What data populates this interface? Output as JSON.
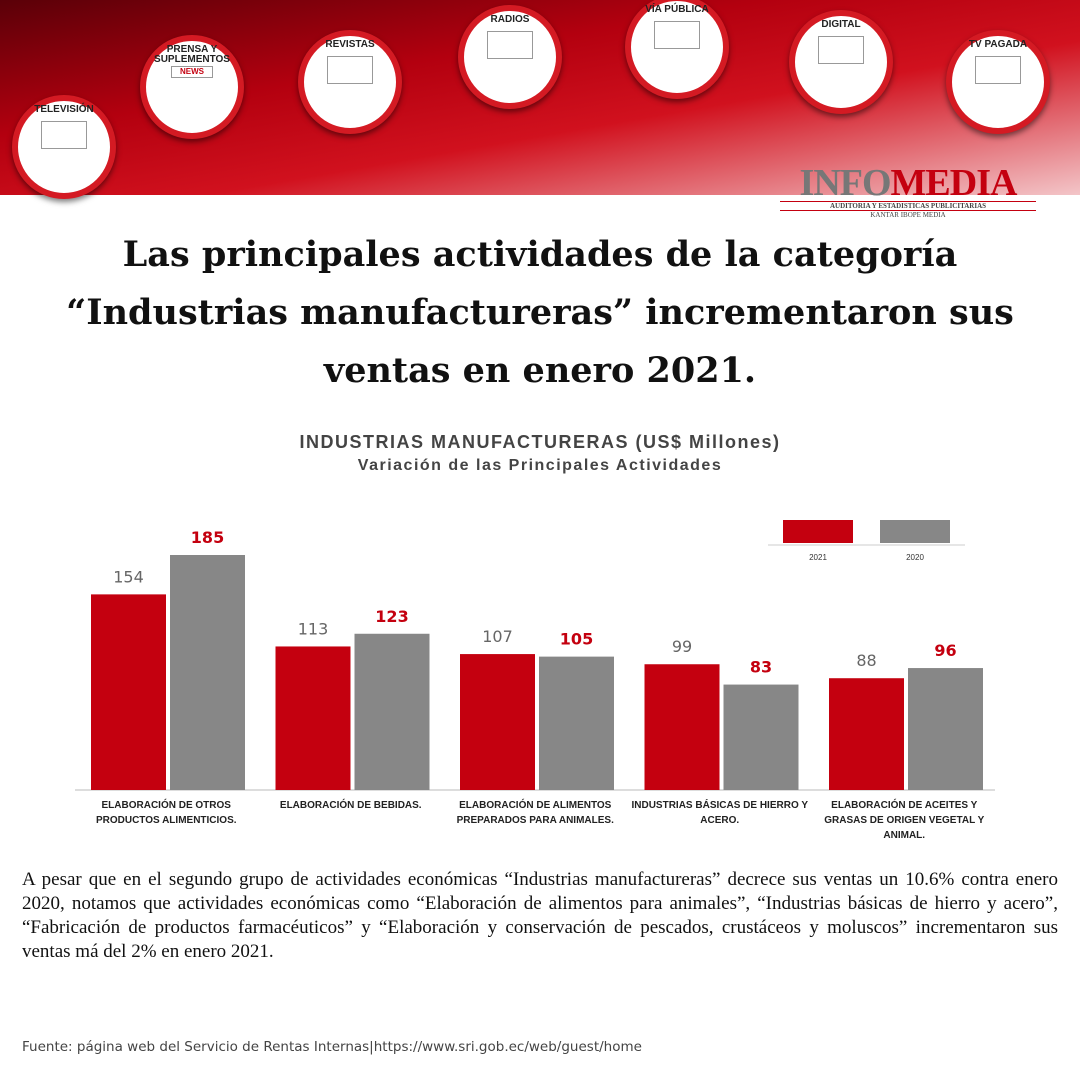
{
  "header": {
    "media": [
      "TELEVISIÓN",
      "PRENSA Y SUPLEMENTOS",
      "REVISTAS",
      "RADIOS",
      "VÍA PÚBLICA",
      "DIGITAL",
      "TV PAGADA"
    ],
    "news_icon": "NEWS",
    "logo": {
      "name_a": "INFO",
      "name_b": "MEDIA",
      "tagline": "AUDITORIA Y ESTADISTICAS PUBLICITARIAS",
      "partner": "KANTAR IBOPE MEDIA"
    }
  },
  "headline": "Las principales actividades de la categoría “Industrias manufactureras” incrementaron sus ventas en enero 2021.",
  "chart_data": {
    "type": "bar",
    "title": "INDUSTRIAS MANUFACTURERAS (US$ Millones)",
    "subtitle": "Variación de las Principales Actividades",
    "categories": [
      "ELABORACIÓN DE OTROS PRODUCTOS ALIMENTICIOS.",
      "ELABORACIÓN DE BEBIDAS.",
      "ELABORACIÓN DE ALIMENTOS PREPARADOS PARA ANIMALES.",
      "INDUSTRIAS BÁSICAS DE HIERRO Y ACERO.",
      "ELABORACIÓN DE ACEITES Y GRASAS DE ORIGEN VEGETAL Y ANIMAL."
    ],
    "series": [
      {
        "name": "2021",
        "color": "#c4000f",
        "label_color": "#666666",
        "values": [
          154,
          113,
          107,
          99,
          88
        ]
      },
      {
        "name": "2020",
        "color": "#878787",
        "label_color": "#c4000f",
        "values": [
          185,
          123,
          105,
          83,
          96
        ]
      }
    ],
    "legend": "top-right"
  },
  "body": "A pesar que en el segundo grupo de actividades económicas “Industrias manufactureras” decrece sus ventas un 10.6% contra enero 2020, notamos que actividades económicas como “Elaboración de alimentos para animales”, “Industrias básicas de hierro y acero”, “Fabricación de productos farmacéuticos” y “Elaboración y conservación de pescados, crustáceos y moluscos” incrementaron sus ventas má del 2% en enero 2021.",
  "source": "Fuente: página web del Servicio de Rentas Internas|https://www.sri.gob.ec/web/guest/home"
}
